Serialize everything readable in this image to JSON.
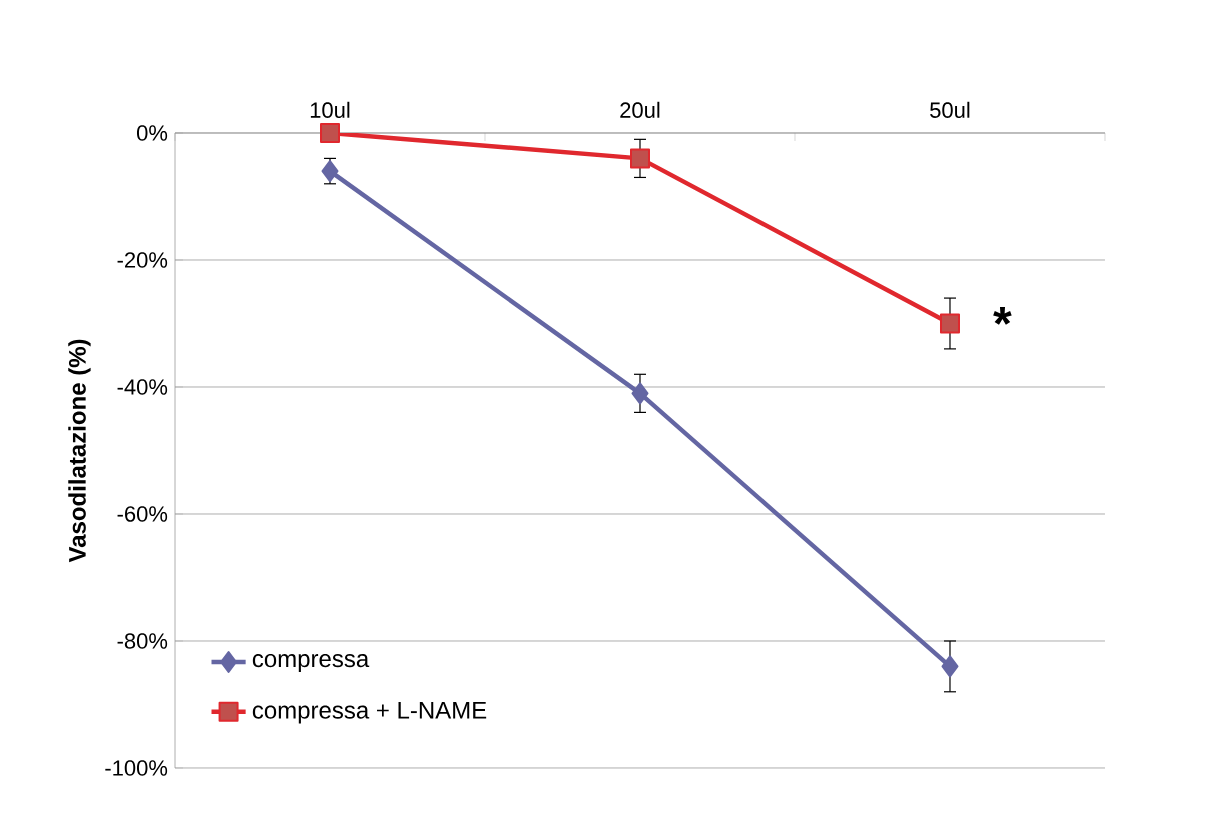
{
  "chart_data": {
    "type": "line",
    "ylabel": "Vasodilatazione (%)",
    "categories": [
      "10ul",
      "20ul",
      "50ul"
    ],
    "series": [
      {
        "name": "compressa",
        "color": "#6466a3",
        "marker": "diamond",
        "values": [
          -6,
          -41,
          -84
        ],
        "errors": [
          2,
          3,
          4
        ]
      },
      {
        "name": "compressa + L-NAME",
        "color": "#e0282e",
        "marker": "square",
        "values": [
          0,
          -4,
          -30
        ],
        "errors": [
          null,
          3,
          4
        ]
      }
    ],
    "ylim": [
      -100,
      0
    ],
    "yticks": [
      {
        "value": -100,
        "label": "-100%"
      },
      {
        "value": -80,
        "label": "-80%"
      },
      {
        "value": -60,
        "label": "-60%"
      },
      {
        "value": -40,
        "label": "-40%"
      },
      {
        "value": -20,
        "label": "-20%"
      },
      {
        "value": 0,
        "label": "0%"
      }
    ],
    "grid": "y",
    "legend": "bottom left",
    "annotations": [
      {
        "text": "*",
        "x": "50ul",
        "y": -30
      }
    ]
  }
}
